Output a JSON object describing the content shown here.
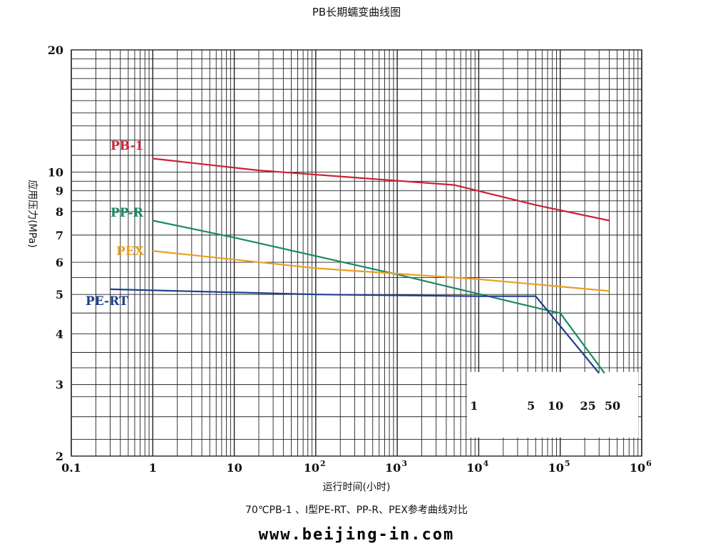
{
  "title": "PB长期蠕变曲线图",
  "caption": "70℃PB-1 、Ⅰ型PE-RT、PP-R、PEX参考曲线对比",
  "website": "www.beijing-in.com",
  "chart_data": {
    "type": "line",
    "title": "PB长期蠕变曲线图",
    "xlabel": "运行时间(小时)",
    "ylabel": "应用压力(MPa)",
    "xscale": "log",
    "yscale": "log",
    "xlim": [
      0.1,
      1000000
    ],
    "ylim": [
      2,
      20
    ],
    "x_ticks": [
      {
        "value": 0.1,
        "label": "0.1"
      },
      {
        "value": 1,
        "label": "1"
      },
      {
        "value": 10,
        "label": "10"
      },
      {
        "value": 100,
        "base": "10",
        "exp": "2"
      },
      {
        "value": 1000,
        "base": "10",
        "exp": "3"
      },
      {
        "value": 10000,
        "base": "10",
        "exp": "4"
      },
      {
        "value": 100000,
        "base": "10",
        "exp": "5"
      },
      {
        "value": 1000000,
        "base": "10",
        "exp": "6"
      }
    ],
    "y_ticks": [
      {
        "value": 2,
        "label": "2"
      },
      {
        "value": 3,
        "label": "3"
      },
      {
        "value": 4,
        "label": "4"
      },
      {
        "value": 5,
        "label": "5"
      },
      {
        "value": 6,
        "label": "6"
      },
      {
        "value": 7,
        "label": "7"
      },
      {
        "value": 8,
        "label": "8"
      },
      {
        "value": 9,
        "label": "9"
      },
      {
        "value": 10,
        "label": "10"
      },
      {
        "value": 20,
        "label": "20"
      }
    ],
    "grid": true,
    "series": [
      {
        "name": "PB-1",
        "color": "#cc2233",
        "points": [
          [
            1,
            10.8
          ],
          [
            20,
            10.1
          ],
          [
            5000,
            9.3
          ],
          [
            50000,
            8.3
          ],
          [
            400000,
            7.6
          ]
        ]
      },
      {
        "name": "PP-R",
        "color": "#1a8a63",
        "points": [
          [
            1,
            7.6
          ],
          [
            10,
            6.9
          ],
          [
            1000,
            5.6
          ],
          [
            60000,
            4.6
          ],
          [
            100000,
            4.5
          ],
          [
            350000,
            3.2
          ]
        ]
      },
      {
        "name": "PEX",
        "color": "#e8a020",
        "points": [
          [
            1,
            6.4
          ],
          [
            100,
            5.8
          ],
          [
            10000,
            5.45
          ],
          [
            400000,
            5.1
          ]
        ]
      },
      {
        "name": "PE-RT",
        "color": "#1c3f8c",
        "points": [
          [
            0.3,
            5.15
          ],
          [
            100,
            5.0
          ],
          [
            10000,
            4.95
          ],
          [
            50000,
            4.95
          ],
          [
            300000,
            3.2
          ]
        ]
      }
    ],
    "years_axis": {
      "labels": [
        {
          "value": 8760,
          "label": "1"
        },
        {
          "value": 43800,
          "label": "5"
        },
        {
          "value": 87600,
          "label": "10"
        },
        {
          "value": 219000,
          "label": "25"
        },
        {
          "value": 438000,
          "label": "50"
        }
      ]
    }
  }
}
